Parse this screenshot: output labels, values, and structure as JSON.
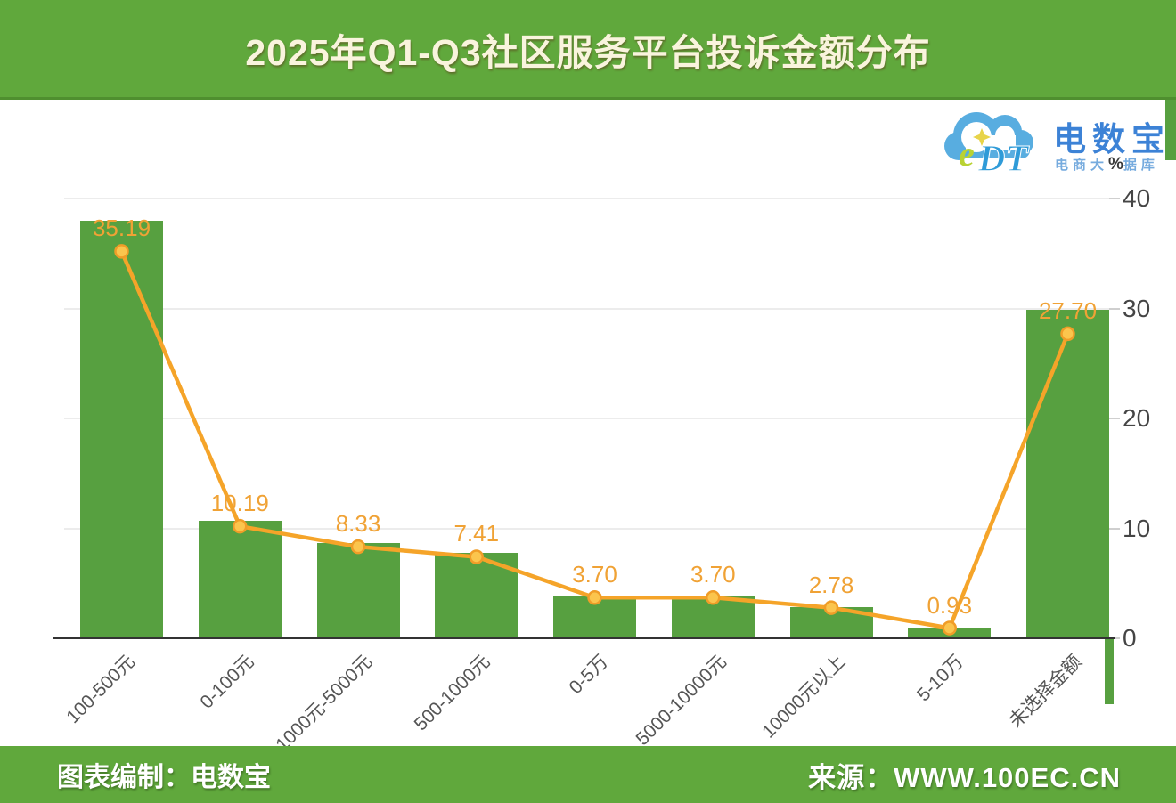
{
  "header": {
    "title": "2025年Q1-Q3社区服务平台投诉金额分布"
  },
  "logo": {
    "cloud_text": "eDT",
    "brand": "电数宝",
    "tagline_prefix": "电商大",
    "tagline_percent": "%",
    "tagline_suffix": "据库",
    "cloud_color": "#58ade0",
    "brand_color": "#3c82d6"
  },
  "chart_data": {
    "type": "bar",
    "overlay": "line",
    "title": "2025年Q1-Q3社区服务平台投诉金额分布",
    "categories": [
      "100-500元",
      "0-100元",
      "1000元-5000元",
      "500-1000元",
      "0-5万",
      "5000-10000元",
      "10000元以上",
      "5-10万",
      "未选择金额"
    ],
    "values": [
      35.19,
      10.19,
      8.33,
      7.41,
      3.7,
      3.7,
      2.78,
      0.93,
      27.7
    ],
    "value_labels": [
      "35.19",
      "10.19",
      "8.33",
      "7.41",
      "3.70",
      "3.70",
      "2.78",
      "0.93",
      "27.70"
    ],
    "bar_render_heights": [
      38.0,
      10.7,
      8.7,
      7.8,
      3.8,
      3.8,
      2.8,
      0.95,
      29.9
    ],
    "y_ticks": [
      "0",
      "10",
      "20",
      "30",
      "40"
    ],
    "ylim": [
      0,
      40
    ],
    "y_axis_position": "right",
    "grid": "horizontal",
    "legend": "none",
    "xlabel": "",
    "ylabel": "",
    "bar_color": "#57a040",
    "line_color": "#f5a429",
    "marker_fill": "#fbc54d",
    "marker_stroke": "#f09d28",
    "value_label_color": "#f0a235"
  },
  "footer": {
    "left": "图表编制：电数宝",
    "right": "来源：WWW.100EC.CN"
  }
}
